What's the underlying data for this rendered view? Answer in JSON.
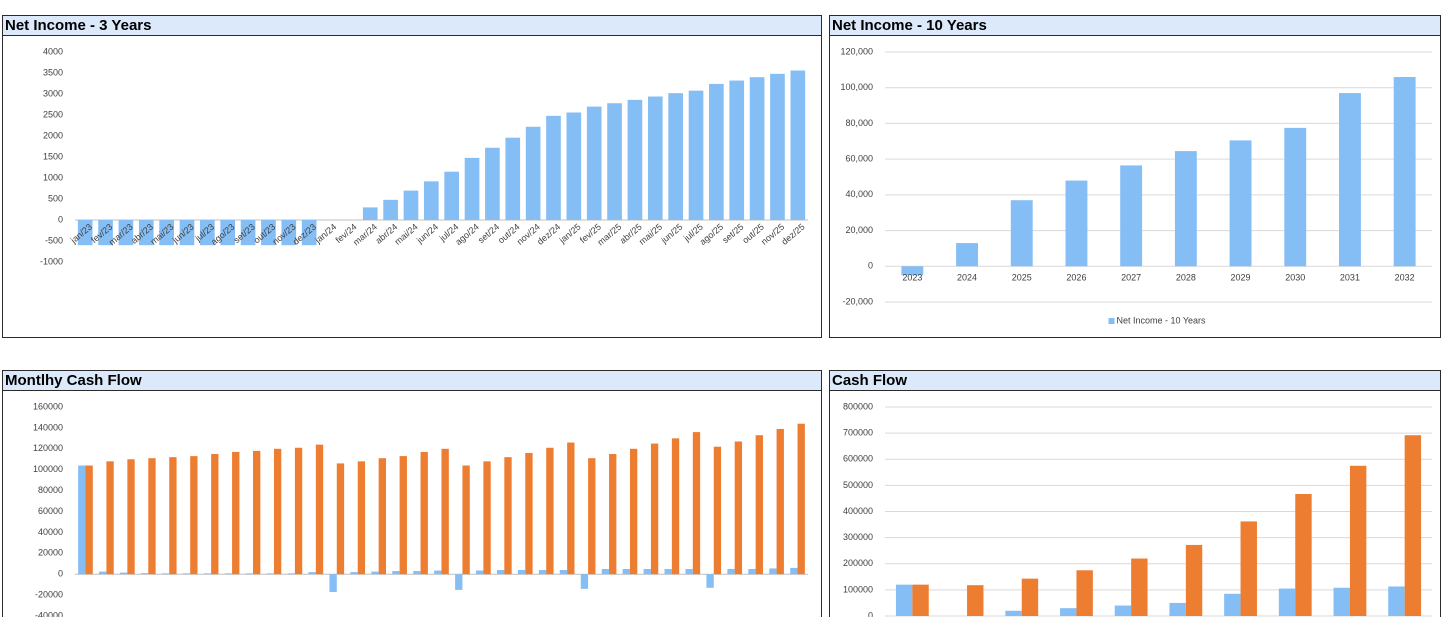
{
  "chart_data": [
    {
      "type": "bar",
      "title": "Net Income - 3 Years",
      "color": "#85bdf5",
      "categories": [
        "jan/23",
        "fev/23",
        "mar/23",
        "abr/23",
        "mai/23",
        "jun/23",
        "jul/23",
        "ago/23",
        "set/23",
        "out/23",
        "nov/23",
        "dez/23",
        "jan/24",
        "fev/24",
        "mar/24",
        "abr/24",
        "mai/24",
        "jun/24",
        "jul/24",
        "ago/24",
        "set/24",
        "out/24",
        "nov/24",
        "dez/24",
        "jan/25",
        "fev/25",
        "mar/25",
        "abr/25",
        "mai/25",
        "jun/25",
        "jul/25",
        "ago/25",
        "set/25",
        "out/25",
        "nov/25",
        "dez/25"
      ],
      "values": [
        -600,
        -600,
        -600,
        -600,
        -600,
        -600,
        -600,
        -600,
        -600,
        -600,
        -600,
        -600,
        0,
        0,
        300,
        480,
        700,
        920,
        1150,
        1480,
        1720,
        1960,
        2220,
        2480,
        2560,
        2700,
        2780,
        2860,
        2940,
        3020,
        3080,
        3240,
        3320,
        3400,
        3480,
        3560
      ],
      "ylim": [
        -1000,
        4000
      ],
      "yticks": [
        -1000,
        -500,
        0,
        500,
        1000,
        1500,
        2000,
        2500,
        3000,
        3500,
        4000
      ],
      "grid": false
    },
    {
      "type": "bar",
      "title": "Net Income - 10 Years",
      "categories": [
        "2023",
        "2024",
        "2025",
        "2026",
        "2027",
        "2028",
        "2029",
        "2030",
        "2031",
        "2032"
      ],
      "series": [
        {
          "name": "Net Income - 10 Years",
          "color": "#85bdf5",
          "values": [
            -5000,
            13000,
            37000,
            48000,
            56500,
            64500,
            70500,
            77500,
            97000,
            106000
          ]
        }
      ],
      "ylim": [
        -20000,
        120000
      ],
      "yticks": [
        {
          "value": -20000,
          "label": "-20,000"
        },
        0,
        {
          "value": 20000,
          "label": "20,000"
        },
        {
          "value": 40000,
          "label": "40,000"
        },
        {
          "value": 60000,
          "label": "60,000"
        },
        {
          "value": 80000,
          "label": "80,000"
        },
        {
          "value": 100000,
          "label": "100,000"
        },
        {
          "value": 120000,
          "label": "120,000"
        }
      ],
      "grid": true,
      "legend": "bottom"
    },
    {
      "type": "bar",
      "title": "Montlhy Cash Flow",
      "series": [
        {
          "color": "#85bdf5",
          "values": [
            104000,
            2500,
            1500,
            1000,
            800,
            800,
            800,
            800,
            800,
            800,
            800,
            2000,
            -17000,
            2000,
            2500,
            3000,
            3000,
            3500,
            -15000,
            3500,
            4000,
            4000,
            4000,
            4000,
            -14000,
            5000,
            5000,
            5000,
            5000,
            5000,
            -13000,
            5000,
            5000,
            5500,
            6000
          ]
        },
        {
          "color": "#ed7d31",
          "values": [
            104000,
            108000,
            110000,
            111000,
            112000,
            113000,
            115000,
            117000,
            118000,
            120000,
            121000,
            124000,
            106000,
            108000,
            111000,
            113000,
            117000,
            120000,
            104000,
            108000,
            112000,
            116000,
            121000,
            126000,
            111000,
            115000,
            120000,
            125000,
            130000,
            136000,
            122000,
            127000,
            133000,
            139000,
            144000
          ]
        }
      ],
      "ylim": [
        -40000,
        160000
      ],
      "yticks": [
        -40000,
        -20000,
        0,
        20000,
        40000,
        60000,
        80000,
        100000,
        120000,
        140000,
        160000
      ],
      "grid": false
    },
    {
      "type": "bar",
      "title": "Cash Flow",
      "series": [
        {
          "color": "#85bdf5",
          "values": [
            120000,
            0,
            20000,
            30000,
            40000,
            50000,
            85000,
            105000,
            108000,
            113000
          ]
        },
        {
          "color": "#ed7d31",
          "values": [
            120000,
            118000,
            143000,
            175000,
            220000,
            272000,
            362000,
            467000,
            575000,
            692000
          ]
        }
      ],
      "ylim": [
        0,
        800000
      ],
      "yticks": [
        0,
        100000,
        200000,
        300000,
        400000,
        500000,
        600000,
        700000,
        800000
      ],
      "grid": true
    }
  ]
}
